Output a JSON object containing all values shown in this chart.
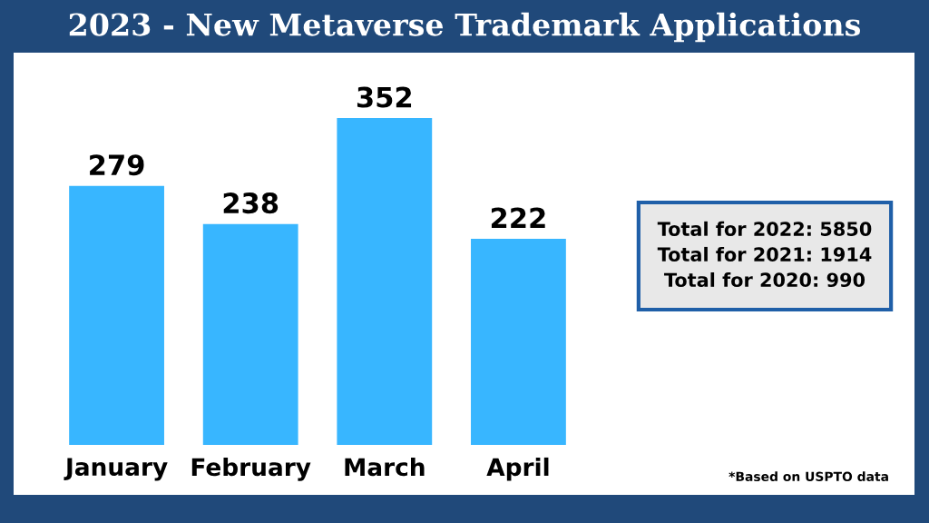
{
  "chart_data": {
    "type": "bar",
    "title": "2023 - New Metaverse Trademark Applications",
    "categories": [
      "January",
      "February",
      "March",
      "April"
    ],
    "values": [
      279,
      238,
      352,
      222
    ],
    "color": "#38b6ff",
    "data_labels": true,
    "annotations": [
      "Total for 2022: 5850\nTotal for 2021: 1914\nTotal for 2020: 990",
      "*Based on USPTO data"
    ]
  }
}
